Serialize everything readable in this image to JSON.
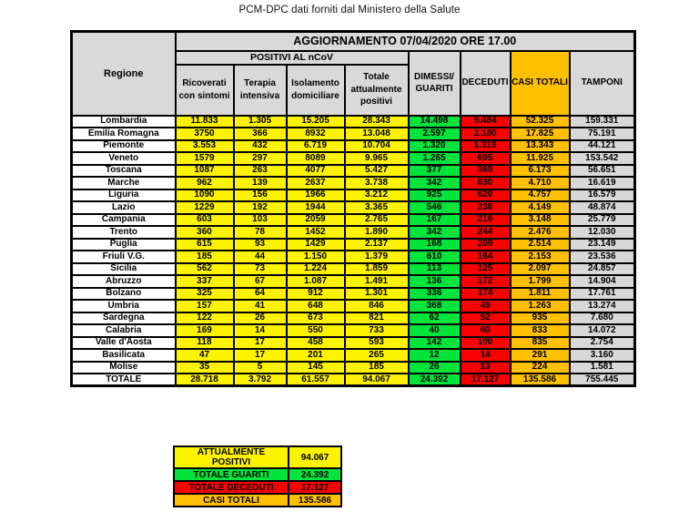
{
  "title": "PCM-DPC dati forniti dal Ministero della Salute",
  "colors": {
    "yellow": "#fdf300",
    "green": "#00e43c",
    "red": "#fb0000",
    "orange": "#ffc000",
    "grey": "#d8d8d8",
    "header_grey": "#d9d9d9",
    "dark_red_text": "#7e0000"
  },
  "chart_data": {
    "type": "table",
    "update_header": "AGGIORNAMENTO 07/04/2020 ORE 17.00",
    "region_header": "Regione",
    "group_header": "POSITIVI AL nCoV",
    "columns": [
      "Ricoverati con sintomi",
      "Terapia intensiva",
      "Isolamento domiciliare",
      "Totale attualmente positivi",
      "DIMESSI/ GUARITI",
      "DECEDUTI",
      "CASI TOTALI",
      "TAMPONI"
    ],
    "rows": [
      {
        "region": "Lombardia",
        "values": [
          "11.833",
          "1.305",
          "15.205",
          "28.343",
          "14.498",
          "9.484",
          "52.325",
          "159.331"
        ]
      },
      {
        "region": "Emilia Romagna",
        "values": [
          "3750",
          "366",
          "8932",
          "13.048",
          "2.597",
          "2.180",
          "17.825",
          "75.191"
        ]
      },
      {
        "region": "Piemonte",
        "values": [
          "3.553",
          "432",
          "6.719",
          "10.704",
          "1.320",
          "1.319",
          "13.343",
          "44.121"
        ]
      },
      {
        "region": "Veneto",
        "values": [
          "1579",
          "297",
          "8089",
          "9.965",
          "1.265",
          "695",
          "11.925",
          "153.542"
        ]
      },
      {
        "region": "Toscana",
        "values": [
          "1087",
          "263",
          "4077",
          "5.427",
          "377",
          "369",
          "6.173",
          "56.651"
        ]
      },
      {
        "region": "Marche",
        "values": [
          "962",
          "139",
          "2637",
          "3.738",
          "342",
          "630",
          "4.710",
          "16.619"
        ]
      },
      {
        "region": "Liguria",
        "values": [
          "1090",
          "156",
          "1966",
          "3.212",
          "925",
          "620",
          "4.757",
          "16.579"
        ]
      },
      {
        "region": "Lazio",
        "values": [
          "1229",
          "192",
          "1944",
          "3.365",
          "546",
          "238",
          "4.149",
          "48.874"
        ]
      },
      {
        "region": "Campania",
        "values": [
          "603",
          "103",
          "2059",
          "2.765",
          "167",
          "216",
          "3.148",
          "25.779"
        ]
      },
      {
        "region": "Trento",
        "values": [
          "360",
          "78",
          "1452",
          "1.890",
          "342",
          "244",
          "2.476",
          "12.030"
        ]
      },
      {
        "region": "Puglia",
        "values": [
          "615",
          "93",
          "1429",
          "2.137",
          "168",
          "209",
          "2.514",
          "23.149"
        ]
      },
      {
        "region": "Friuli V.G.",
        "values": [
          "185",
          "44",
          "1.150",
          "1.379",
          "610",
          "164",
          "2.153",
          "23.536"
        ]
      },
      {
        "region": "Sicilia",
        "values": [
          "562",
          "73",
          "1.224",
          "1.859",
          "113",
          "125",
          "2.097",
          "24.857"
        ]
      },
      {
        "region": "Abruzzo",
        "values": [
          "337",
          "67",
          "1.087",
          "1.491",
          "136",
          "172",
          "1.799",
          "14.904"
        ]
      },
      {
        "region": "Bolzano",
        "values": [
          "325",
          "64",
          "912",
          "1.301",
          "336",
          "174",
          "1.811",
          "17.761"
        ]
      },
      {
        "region": "Umbria",
        "values": [
          "157",
          "41",
          "648",
          "846",
          "368",
          "49",
          "1.263",
          "13.274"
        ]
      },
      {
        "region": "Sardegna",
        "values": [
          "122",
          "26",
          "673",
          "821",
          "62",
          "52",
          "935",
          "7.680"
        ]
      },
      {
        "region": "Calabria",
        "values": [
          "169",
          "14",
          "550",
          "733",
          "40",
          "60",
          "833",
          "14.072"
        ]
      },
      {
        "region": "Valle d'Aosta",
        "values": [
          "118",
          "17",
          "458",
          "593",
          "142",
          "100",
          "835",
          "2.754"
        ]
      },
      {
        "region": "Basilicata",
        "values": [
          "47",
          "17",
          "201",
          "265",
          "12",
          "14",
          "291",
          "3.160"
        ]
      },
      {
        "region": "Molise",
        "values": [
          "35",
          "5",
          "145",
          "185",
          "26",
          "13",
          "224",
          "1.581"
        ]
      }
    ],
    "total": {
      "region": "TOTALE",
      "values": [
        "28.718",
        "3.792",
        "61.557",
        "94.067",
        "24.392",
        "17.127",
        "135.586",
        "755.445"
      ]
    },
    "summary": [
      {
        "label": "ATTUALMENTE POSITIVI",
        "value": "94.067",
        "color": "yellow"
      },
      {
        "label": "TOTALE GUARITI",
        "value": "24.392",
        "color": "green"
      },
      {
        "label": "TOTALE DECEDUTI",
        "value": "17.127",
        "color": "red"
      },
      {
        "label": "CASI TOTALI",
        "value": "135.586",
        "color": "orange"
      }
    ]
  }
}
